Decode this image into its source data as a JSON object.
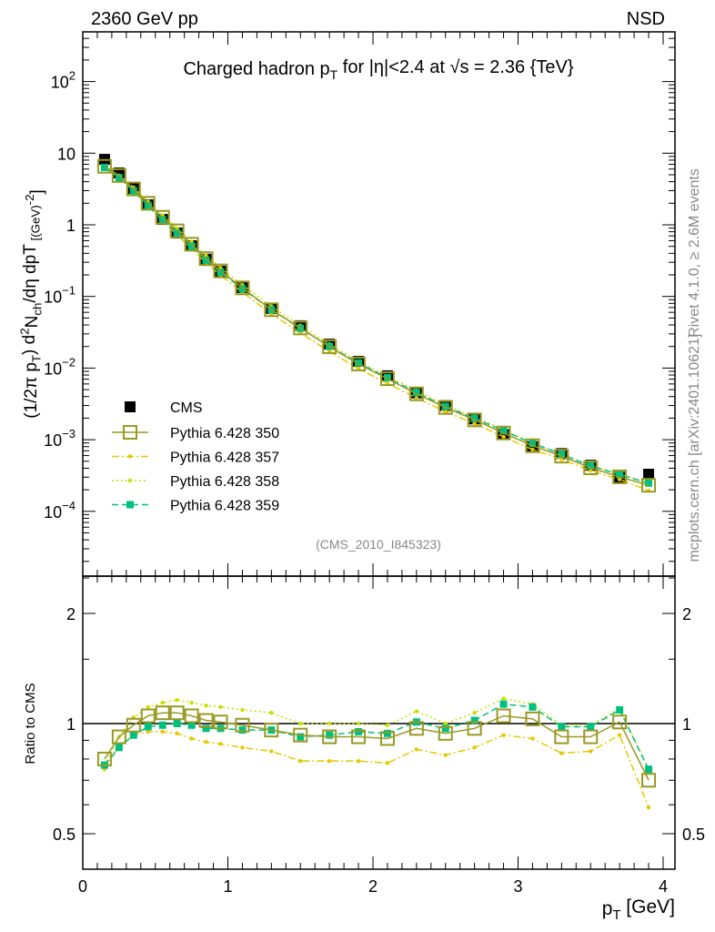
{
  "header": {
    "left": "2360 GeV pp",
    "right": "NSD"
  },
  "side": {
    "rivet": "Rivet 4.1.0, ≥ 2.6M events",
    "mcplots": "mcplots.cern.ch [arXiv:2401.10621]"
  },
  "chart_data": [
    {
      "type": "scatter",
      "title_parts": [
        "Charged hadron p",
        "T",
        " for |η|<2.4 at √s = 2.36 {TeV}"
      ],
      "ylabel_parts": [
        "(1/2π p",
        "T",
        ") d",
        "2",
        "N",
        "ch",
        "/dη  dp",
        "T",
        " [(GeV)",
        "-2",
        "]"
      ],
      "xlabel_parts": [
        "p",
        "T",
        " [GeV]"
      ],
      "analysis": "(CMS_2010_I845323)",
      "yscale": "log",
      "ylim": [
        1.25e-05,
        490
      ],
      "yticks": [
        {
          "v": 100,
          "m": "10",
          "e": "2"
        },
        {
          "v": 10,
          "m": "10",
          "e": ""
        },
        {
          "v": 1,
          "m": "1",
          "e": ""
        },
        {
          "v": 0.1,
          "m": "10",
          "e": "−1"
        },
        {
          "v": 0.01,
          "m": "10",
          "e": "−2"
        },
        {
          "v": 0.001,
          "m": "10",
          "e": "−3"
        },
        {
          "v": 0.0001,
          "m": "10",
          "e": "−4"
        }
      ],
      "x": [
        0.15,
        0.25,
        0.35,
        0.45,
        0.55,
        0.65,
        0.75,
        0.85,
        0.95,
        1.1,
        1.3,
        1.5,
        1.7,
        1.9,
        2.1,
        2.3,
        2.5,
        2.7,
        2.9,
        3.1,
        3.3,
        3.5,
        3.7,
        3.9
      ],
      "data": {
        "name": "CMS",
        "color": "#000000",
        "values": [
          8.2,
          5.3,
          3.2,
          1.9,
          1.19,
          0.77,
          0.51,
          0.33,
          0.225,
          0.133,
          0.068,
          0.039,
          0.0216,
          0.0124,
          0.0078,
          0.0045,
          0.003,
          0.00195,
          0.00118,
          0.0008,
          0.00064,
          0.00044,
          0.0003,
          0.00033
        ]
      },
      "legend_position": "lower-left"
    },
    {
      "type": "line",
      "ylabel": "Ratio to CMS",
      "yscale": "log",
      "ylim": [
        0.4,
        2.53
      ],
      "yticks": [
        "0.5",
        "1",
        "2"
      ],
      "xlim": [
        0,
        4.1
      ],
      "xticks": [
        "0",
        "1",
        "2",
        "3",
        "4"
      ],
      "series": [
        {
          "name": "Pythia 6.428 350",
          "color": "#999922",
          "style": "solid",
          "marker": "open-square",
          "ratio": [
            0.8,
            0.92,
            0.99,
            1.05,
            1.07,
            1.07,
            1.05,
            1.02,
            1.01,
            0.99,
            0.96,
            0.93,
            0.92,
            0.92,
            0.91,
            0.97,
            0.94,
            0.97,
            1.05,
            1.03,
            0.92,
            0.92,
            1.01,
            0.7
          ]
        },
        {
          "name": "Pythia 6.428 357",
          "color": "#e6c800",
          "style": "dashdot",
          "marker": "dot",
          "ratio": [
            0.75,
            0.87,
            0.93,
            0.95,
            0.95,
            0.94,
            0.91,
            0.89,
            0.88,
            0.86,
            0.84,
            0.79,
            0.79,
            0.79,
            0.78,
            0.85,
            0.82,
            0.86,
            0.93,
            0.91,
            0.83,
            0.84,
            0.93,
            0.59
          ]
        },
        {
          "name": "Pythia 6.428 358",
          "color": "#c8e000",
          "style": "dotted",
          "marker": "dot",
          "ratio": [
            0.77,
            0.92,
            1.04,
            1.11,
            1.14,
            1.16,
            1.14,
            1.12,
            1.11,
            1.09,
            1.07,
            1.0,
            1.0,
            1.0,
            0.99,
            1.08,
            1.0,
            1.07,
            1.17,
            1.13,
            0.99,
            0.99,
            1.1,
            0.75
          ]
        },
        {
          "name": "Pythia 6.428 359",
          "color": "#00c080",
          "style": "dashed",
          "marker": "filled-square",
          "ratio": [
            0.77,
            0.86,
            0.93,
            0.98,
            0.99,
            1.0,
            0.99,
            0.97,
            0.97,
            0.96,
            0.96,
            0.92,
            0.93,
            0.95,
            0.94,
            1.01,
            0.97,
            1.02,
            1.13,
            1.11,
            0.98,
            0.98,
            1.09,
            0.75
          ]
        }
      ]
    }
  ]
}
